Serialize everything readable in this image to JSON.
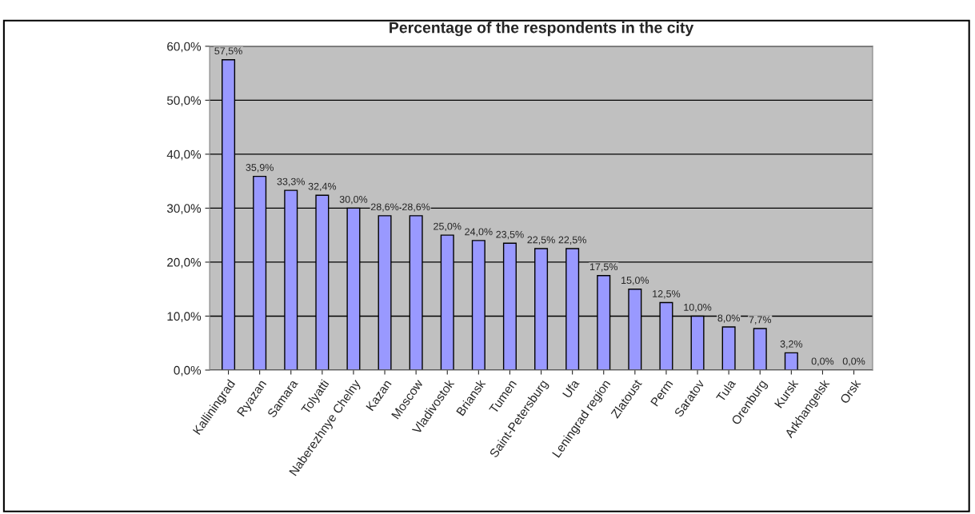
{
  "chart_data": {
    "type": "bar",
    "title": "Percentage of the respondents in the city",
    "categories": [
      "Kalliningrad",
      "Ryazan",
      "Samara",
      "Tolyatti",
      "Naberezhnye Chelny",
      "Kazan",
      "Moscow",
      "Vladivostok",
      "Briansk",
      "Tumen",
      "Saint-Petersburg",
      "Ufa",
      "Leningrad region",
      "Zlatoust",
      "Perm",
      "Saratov",
      "Tula",
      "Orenburg",
      "Kursk",
      "Arkhangelsk",
      "Orsk"
    ],
    "values": [
      57.5,
      35.9,
      33.3,
      32.4,
      30.0,
      28.6,
      28.6,
      25.0,
      24.0,
      23.5,
      22.5,
      22.5,
      17.5,
      15.0,
      12.5,
      10.0,
      8.0,
      7.7,
      3.2,
      0.0,
      0.0
    ],
    "value_labels": [
      "57,5%",
      "35,9%",
      "33,3%",
      "32,4%",
      "30,0%",
      "28,6%",
      "28,6%",
      "25,0%",
      "24,0%",
      "23,5%",
      "22,5%",
      "22,5%",
      "17,5%",
      "15,0%",
      "12,5%",
      "10,0%",
      "8,0%",
      "7,7%",
      "3,2%",
      "0,0%",
      "0,0%"
    ],
    "color": "#9999ff",
    "ylim": [
      0,
      60
    ],
    "yticks": [
      {
        "value": 0,
        "label": "0,0%"
      },
      {
        "value": 10,
        "label": "10,0%"
      },
      {
        "value": 20,
        "label": "20,0%"
      },
      {
        "value": 30,
        "label": "30,0%"
      },
      {
        "value": 40,
        "label": "40,0%"
      },
      {
        "value": 50,
        "label": "50,0%"
      },
      {
        "value": 60,
        "label": "60,0%"
      }
    ],
    "grid": "y"
  }
}
